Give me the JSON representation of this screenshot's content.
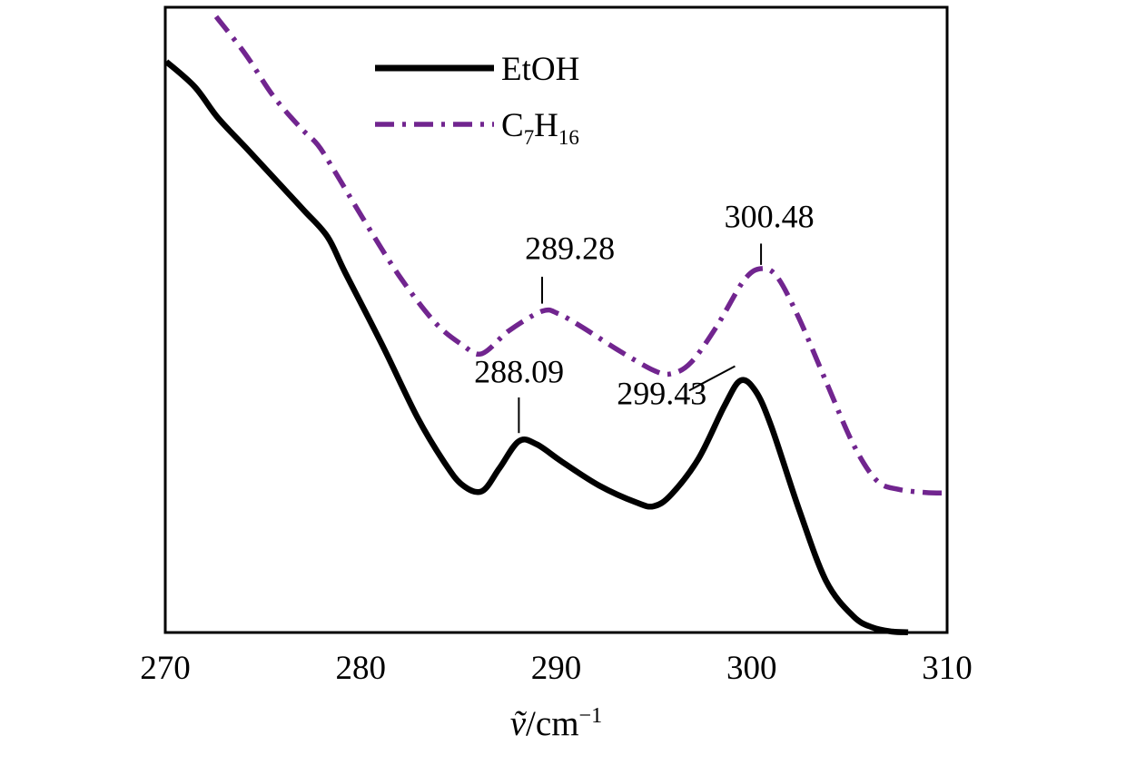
{
  "chart_data": {
    "type": "line",
    "title": "",
    "xlabel_parts": [
      {
        "t": "ṽ",
        "i": true
      },
      {
        "t": "/cm"
      },
      {
        "t": "−1",
        "sup": true
      }
    ],
    "xlabel_text": "ṽ/cm⁻¹",
    "x_ticks": [
      "270",
      "280",
      "290",
      "300",
      "310"
    ],
    "x_tick_values": [
      270,
      280,
      290,
      300,
      310
    ],
    "x_range": [
      270,
      310
    ],
    "y_range": [
      0,
      100
    ],
    "grid": false,
    "legend_position": "top-left-inside",
    "series": [
      {
        "name": "EtOH",
        "label_parts": [
          {
            "t": "EtOH"
          }
        ],
        "color": "#000000",
        "style": "solid",
        "points": [
          [
            270.05,
            91.3
          ],
          [
            271.5,
            87.3
          ],
          [
            272.7,
            82.3
          ],
          [
            274.2,
            77.3
          ],
          [
            275.5,
            72.9
          ],
          [
            277.1,
            67.5
          ],
          [
            278.3,
            63.3
          ],
          [
            279.2,
            57.6
          ],
          [
            281.1,
            46.0
          ],
          [
            282.9,
            34.4
          ],
          [
            284.3,
            27.1
          ],
          [
            285.2,
            23.6
          ],
          [
            286.2,
            22.6
          ],
          [
            287.1,
            26.3
          ],
          [
            288.09,
            30.6
          ],
          [
            289.0,
            30.1
          ],
          [
            290.3,
            27.3
          ],
          [
            292.2,
            23.5
          ],
          [
            294.1,
            20.8
          ],
          [
            295.0,
            20.2
          ],
          [
            295.9,
            22.1
          ],
          [
            297.3,
            27.9
          ],
          [
            298.6,
            36.2
          ],
          [
            299.43,
            40.3
          ],
          [
            300.2,
            38.6
          ],
          [
            301.0,
            33.0
          ],
          [
            302.4,
            19.9
          ],
          [
            303.8,
            8.3
          ],
          [
            305.2,
            2.6
          ],
          [
            306.2,
            0.8
          ],
          [
            307.2,
            0.15
          ],
          [
            308.0,
            0.05
          ]
        ]
      },
      {
        "name": "C7H16",
        "label_parts": [
          {
            "t": "C"
          },
          {
            "t": "7",
            "sub": true
          },
          {
            "t": "H"
          },
          {
            "t": "16",
            "sub": true
          }
        ],
        "color": "#71258f",
        "style": "dashdot",
        "points": [
          [
            272.6,
            98.5
          ],
          [
            274.1,
            92.5
          ],
          [
            275.5,
            85.9
          ],
          [
            276.9,
            80.8
          ],
          [
            277.8,
            78.0
          ],
          [
            278.7,
            73.6
          ],
          [
            280.1,
            66.3
          ],
          [
            282.0,
            56.9
          ],
          [
            283.8,
            49.6
          ],
          [
            285.2,
            46.0
          ],
          [
            286.2,
            44.6
          ],
          [
            287.6,
            48.3
          ],
          [
            289.28,
            51.4
          ],
          [
            290.1,
            51.0
          ],
          [
            291.3,
            48.9
          ],
          [
            293.1,
            45.3
          ],
          [
            295.0,
            41.9
          ],
          [
            295.9,
            41.4
          ],
          [
            296.9,
            43.2
          ],
          [
            298.2,
            48.9
          ],
          [
            299.6,
            56.3
          ],
          [
            300.48,
            58.2
          ],
          [
            301.3,
            56.9
          ],
          [
            302.4,
            50.4
          ],
          [
            303.8,
            40.2
          ],
          [
            305.2,
            30.1
          ],
          [
            306.4,
            24.3
          ],
          [
            307.5,
            22.9
          ],
          [
            308.9,
            22.4
          ],
          [
            310.0,
            22.3
          ]
        ]
      }
    ],
    "annotations": [
      {
        "series": "EtOH",
        "label": "288.09",
        "peak_x": 288.09,
        "label_x": 288.1,
        "label_y": 40.0,
        "leader": [
          [
            288.09,
            37.6
          ],
          [
            288.09,
            31.9
          ]
        ]
      },
      {
        "series": "EtOH",
        "label": "299.43",
        "peak_x": 299.43,
        "label_x": 295.4,
        "label_y": 36.5,
        "leader": [
          [
            296.8,
            38.7
          ],
          [
            299.15,
            42.6
          ]
        ]
      },
      {
        "series": "C7H16",
        "label": "289.28",
        "peak_x": 289.28,
        "label_x": 290.7,
        "label_y": 59.7,
        "leader": [
          [
            289.28,
            56.9
          ],
          [
            289.28,
            52.6
          ]
        ]
      },
      {
        "series": "C7H16",
        "label": "300.48",
        "peak_x": 300.48,
        "label_x": 300.9,
        "label_y": 64.8,
        "leader": [
          [
            300.48,
            62.2
          ],
          [
            300.48,
            58.8
          ]
        ]
      }
    ],
    "colors": {
      "axis": "#000000",
      "etoh": "#000000",
      "c7h16": "#71258f"
    }
  }
}
